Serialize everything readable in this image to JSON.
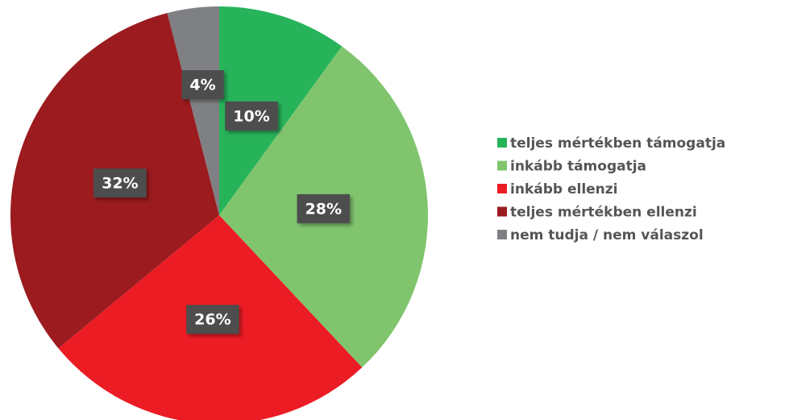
{
  "chart_data": {
    "type": "pie",
    "categories": [
      "teljes mértékben támogatja",
      "inkább támogatja",
      "inkább ellenzi",
      "teljes mértékben ellenzi",
      "nem tudja / nem válaszol"
    ],
    "values": [
      10,
      28,
      26,
      32,
      4
    ],
    "value_labels": [
      "10%",
      "28%",
      "26%",
      "32%",
      "4%"
    ],
    "colors": [
      "#27b35a",
      "#80c56e",
      "#ec1c24",
      "#9b1b1f",
      "#7f8083"
    ],
    "legend": "right"
  }
}
